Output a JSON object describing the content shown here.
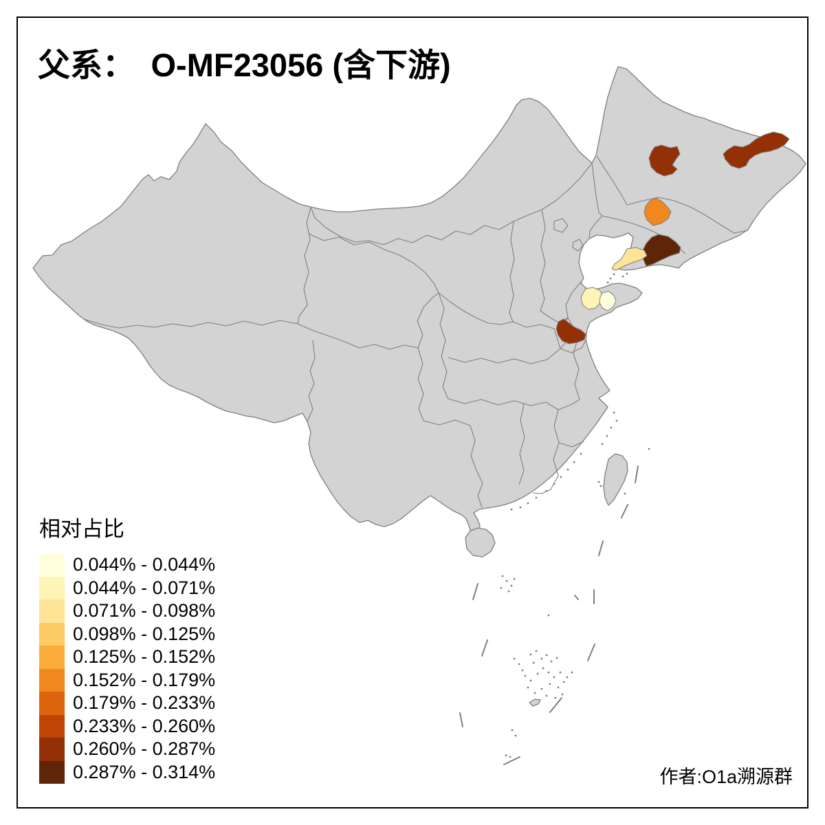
{
  "title": {
    "text": "父系：　O-MF23056 (含下游)"
  },
  "legend": {
    "title": "相对占比",
    "items": [
      {
        "label": "0.044% - 0.044%",
        "color": "#FFFFDE"
      },
      {
        "label": "0.044% - 0.071%",
        "color": "#FEF4B5"
      },
      {
        "label": "0.071% - 0.098%",
        "color": "#FEE497"
      },
      {
        "label": "0.098% - 0.125%",
        "color": "#FDCA64"
      },
      {
        "label": "0.125% - 0.152%",
        "color": "#FCAC3D"
      },
      {
        "label": "0.152% - 0.179%",
        "color": "#F1871F"
      },
      {
        "label": "0.179% - 0.233%",
        "color": "#DC650D"
      },
      {
        "label": "0.233% - 0.260%",
        "color": "#BF4504"
      },
      {
        "label": "0.260% - 0.287%",
        "color": "#933006"
      },
      {
        "label": "0.287% - 0.314%",
        "color": "#5F2507"
      }
    ]
  },
  "attribution": "作者:O1a溯源群",
  "map": {
    "land_color": "#D3D3D3",
    "border_color": "#7E7E7E",
    "sea_color": "#FFFFFF",
    "frame_color": "#000000",
    "regions": [
      {
        "name": "northeast-west-prefecture",
        "color": "#933006",
        "range": "0.260% - 0.287%"
      },
      {
        "name": "northeast-east-prefecture",
        "color": "#933006",
        "range": "0.260% - 0.287%"
      },
      {
        "name": "central-jilin-prefecture",
        "color": "#F1871F",
        "range": "0.152% - 0.179%"
      },
      {
        "name": "southeast-liaoning-coast",
        "color": "#5F2507",
        "range": "0.287% - 0.314%"
      },
      {
        "name": "liaodong-peninsula-tip",
        "color": "#FEE497",
        "range": "0.071% - 0.098%"
      },
      {
        "name": "central-shandong",
        "color": "#FEF4B5",
        "range": "0.044% - 0.071%"
      },
      {
        "name": "east-shandong",
        "color": "#FFFFDE",
        "range": "0.044% - 0.044%"
      },
      {
        "name": "southwest-shandong",
        "color": "#933006",
        "range": "0.260% - 0.287%"
      }
    ]
  }
}
